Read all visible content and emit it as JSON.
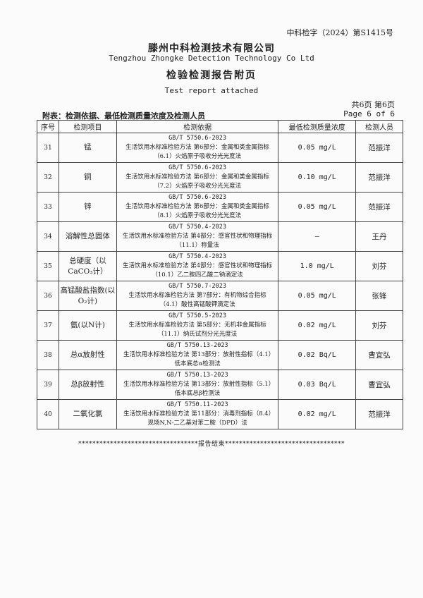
{
  "header": {
    "report_no": "中科检字（2024）第S1415号",
    "company": "滕州中科检测技术有限公司",
    "company_en": "Tengzhou Zhongke Detection Technology Co Ltd",
    "title": "检验检测报告附页",
    "title_en": "Test report attached",
    "pages_cn": "共6页 第6页",
    "pages_en": "Page 6 of 6",
    "caption": "附表：检测依据、最低检测质量浓度及检测人员"
  },
  "table": {
    "headers": [
      "序号",
      "检测项目",
      "检测依据",
      "最低检测质量浓度",
      "检测人员"
    ],
    "rows": [
      {
        "no": "31",
        "item": "锰",
        "std": "GB/T 5750.6-2023",
        "method": "生活饮用水标准检验方法 第6部分：金属和类金属指标（6.1）火焰原子吸收分光光度法",
        "value": "0.05 mg/L",
        "person": "范振洋"
      },
      {
        "no": "32",
        "item": "铜",
        "std": "GB/T 5750.6-2023",
        "method": "生活饮用水标准检验方法 第6部分：金属和类金属指标（7.2）火焰原子吸收分光光度法",
        "value": "0.10 mg/L",
        "person": "范振洋"
      },
      {
        "no": "33",
        "item": "锌",
        "std": "GB/T 5750.6-2023",
        "method": "生活饮用水标准检验方法 第6部分：金属和类金属指标（8.1）火焰原子吸收分光光度法",
        "value": "0.05 mg/L",
        "person": "范振洋"
      },
      {
        "no": "34",
        "item": "溶解性总固体",
        "std": "GB/T 5750.4-2023",
        "method": "生活饮用水标准检验方法 第4部分：感官性状和物理指标（11.1）称量法",
        "value": "—",
        "person": "王丹"
      },
      {
        "no": "35",
        "item": "总硬度（以CaCO₃计）",
        "std": "GB/T 5750.4-2023",
        "method": "生活饮用水标准检验方法 第4部分：感官性状和物理指标（10.1）乙二胺四乙酸二钠滴定法",
        "value": "1.0 mg/L",
        "person": "刘芬"
      },
      {
        "no": "36",
        "item": "高锰酸盐指数(以O₂计)",
        "std": "GB/T 5750.7-2023",
        "method": "生活饮用水标准检验方法 第7部分：有机物综合指标（4.1）酸性高锰酸钾滴定法",
        "value": "0.05 mg/L",
        "person": "张锋"
      },
      {
        "no": "37",
        "item": "氨(以N计)",
        "std": "GB/T 5750.5-2023",
        "method": "生活饮用水标准检验方法 第5部分：无机非金属指标（11.1）纳氏试剂分光光度法",
        "value": "0.02 mg/L",
        "person": "刘芬"
      },
      {
        "no": "38",
        "item": "总α放射性",
        "std": "GB/T 5750.13-2023",
        "method": "生活饮用水标准检验方法 第13部分：放射性指标（4.1）低本底总α检测法",
        "value": "0.02 Bq/L",
        "person": "曹宜弘"
      },
      {
        "no": "39",
        "item": "总β放射性",
        "std": "GB/T 5750.13-2023",
        "method": "生活饮用水标准检验方法 第13部分：放射性指标（5.1）低本底总β检测法",
        "value": "0.03 Bq/L",
        "person": "曹宜弘"
      },
      {
        "no": "40",
        "item": "二氧化氯",
        "std": "GB/T 5750.11-2023",
        "method": "生活饮用水标准检验方法 第11部分：消毒剂指标（8.4）现场N,N-二乙基对苯二胺（DPD）法",
        "value": "0.02 mg/L",
        "person": "范振洋"
      }
    ]
  },
  "footer": "**********************************报告结束**********************************"
}
